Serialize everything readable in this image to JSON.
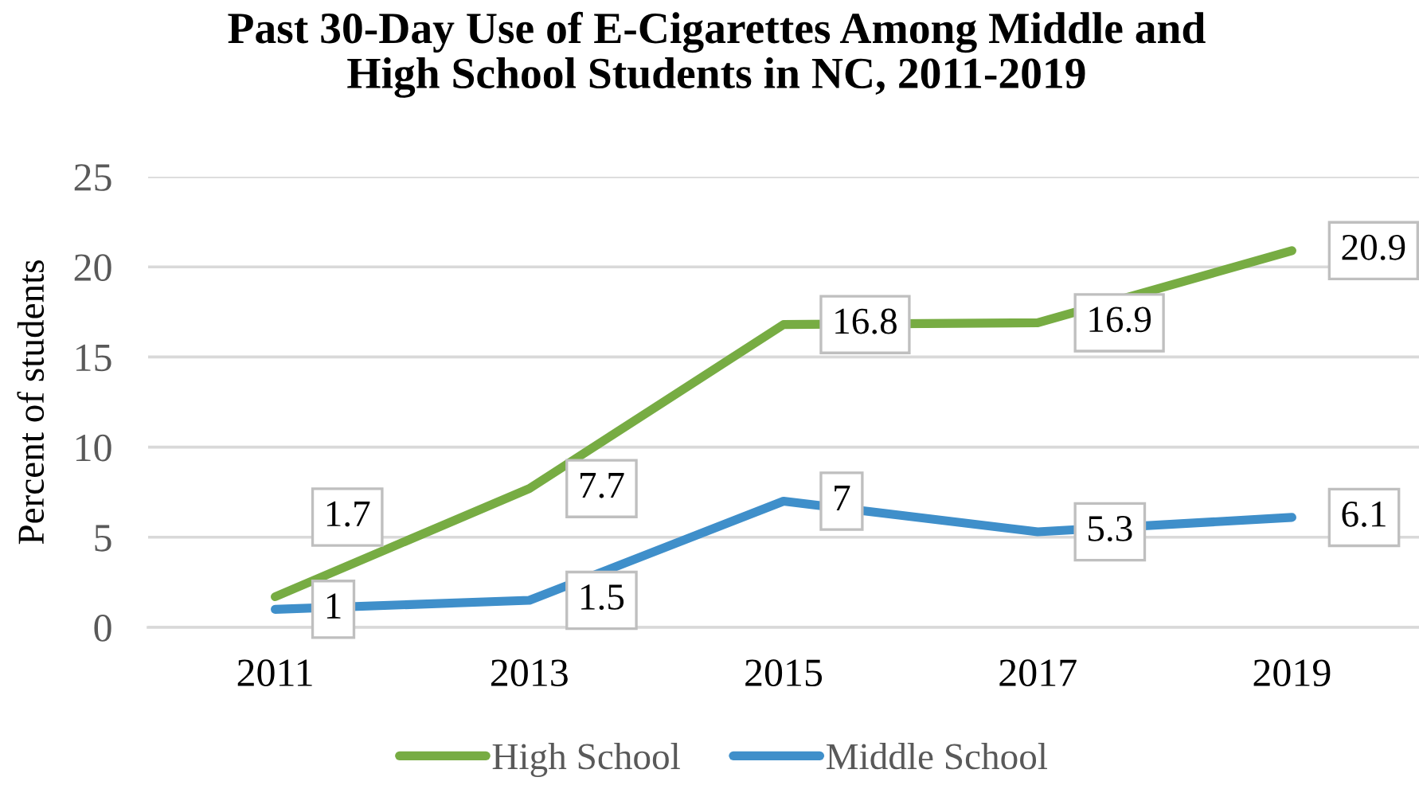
{
  "chart_data": {
    "type": "line",
    "title": "Past 30-Day Use of E-Cigarettes Among Middle and\nHigh School Students in NC, 2011-2019",
    "ylabel": "Percent of students",
    "categories": [
      "2011",
      "2013",
      "2015",
      "2017",
      "2019"
    ],
    "series": [
      {
        "name": "High School",
        "color": "#77ac43",
        "values": [
          1.7,
          7.7,
          16.8,
          16.9,
          20.9
        ]
      },
      {
        "name": "Middle School",
        "color": "#3f8fca",
        "values": [
          1,
          1.5,
          7,
          5.3,
          6.1
        ]
      }
    ],
    "ylim": [
      0,
      25
    ],
    "yticks": [
      0,
      5,
      10,
      15,
      20,
      25
    ],
    "grid": "y",
    "legend": "bottom",
    "data_labels": true,
    "line_style": "solid"
  }
}
